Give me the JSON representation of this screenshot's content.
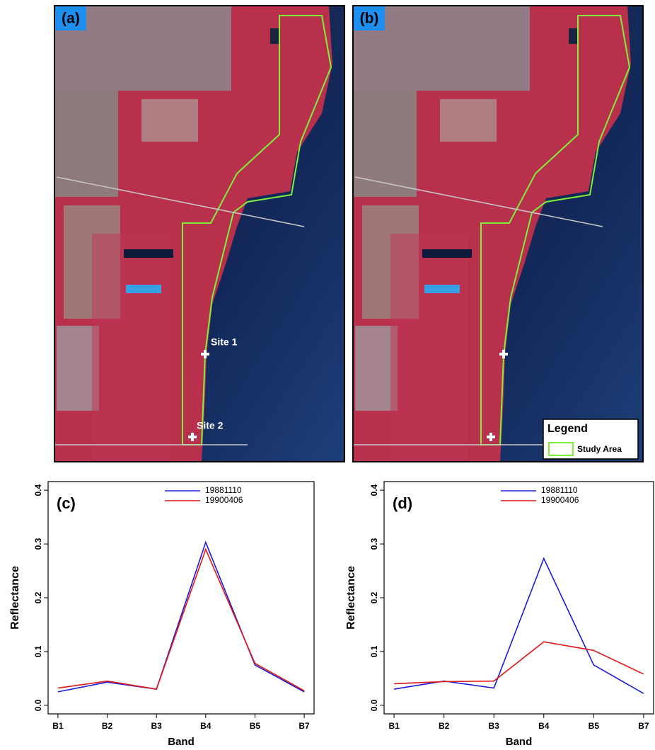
{
  "panels": [
    {
      "label": "(a)",
      "sites": [
        "Site 1",
        "Site 2"
      ]
    },
    {
      "label": "(b)",
      "legend_title": "Legend",
      "legend_entry": "Study Area"
    }
  ],
  "chart_data": [
    {
      "type": "line",
      "panel_label": "(c)",
      "x_label": "Band",
      "y_label": "Reflectance",
      "categories": [
        "B1",
        "B2",
        "B3",
        "B4",
        "B5",
        "B7"
      ],
      "series": [
        {
          "name": "19881110",
          "color": "#1a1adc",
          "values": [
            0.025,
            0.043,
            0.03,
            0.303,
            0.075,
            0.025
          ]
        },
        {
          "name": "19900406",
          "color": "#e01818",
          "values": [
            0.032,
            0.045,
            0.03,
            0.29,
            0.078,
            0.027
          ]
        }
      ],
      "ylim": [
        0,
        0.4
      ],
      "yticks": [
        {
          "value": 0,
          "label": "0.0"
        },
        0.1,
        0.2,
        0.3,
        0.4
      ]
    },
    {
      "type": "line",
      "panel_label": "(d)",
      "x_label": "Band",
      "y_label": "Reflectance",
      "categories": [
        "B1",
        "B2",
        "B3",
        "B4",
        "B5",
        "B7"
      ],
      "series": [
        {
          "name": "19881110",
          "color": "#1a1adc",
          "values": [
            0.03,
            0.045,
            0.032,
            0.273,
            0.075,
            0.022
          ]
        },
        {
          "name": "19900406",
          "color": "#e01818",
          "values": [
            0.04,
            0.044,
            0.045,
            0.118,
            0.102,
            0.058
          ]
        }
      ],
      "ylim": [
        0,
        0.4
      ],
      "yticks": [
        {
          "value": 0,
          "label": "0.0"
        },
        0.1,
        0.2,
        0.3,
        0.4
      ]
    }
  ]
}
